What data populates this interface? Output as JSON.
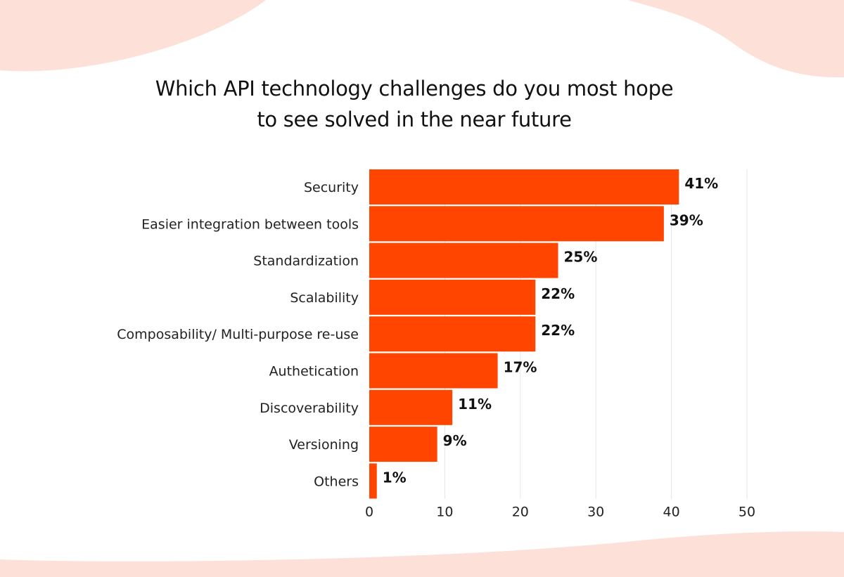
{
  "colors": {
    "bar": "#ff4500",
    "background_shape": "#fde0d8",
    "grid": "#e6e6e6"
  },
  "chart_data": {
    "type": "bar",
    "orientation": "horizontal",
    "title": [
      "Which API technology challenges do you most hope",
      "to see  solved in the near future"
    ],
    "categories": [
      "Security",
      "Easier integration between tools",
      "Standardization",
      "Scalability",
      "Composability/ Multi-purpose re-use",
      "Authetication",
      "Discoverability",
      "Versioning",
      "Others"
    ],
    "values": [
      41,
      39,
      25,
      22,
      22,
      17,
      11,
      9,
      1
    ],
    "data_labels": [
      "41%",
      "39%",
      "25%",
      "22%",
      "22%",
      "17%",
      "11%",
      "9%",
      "1%"
    ],
    "xlabel": "",
    "ylabel": "",
    "xlim": [
      0,
      50
    ],
    "xticks": [
      "0",
      "10",
      "20",
      "30",
      "40",
      "50"
    ],
    "grid": "vertical"
  }
}
